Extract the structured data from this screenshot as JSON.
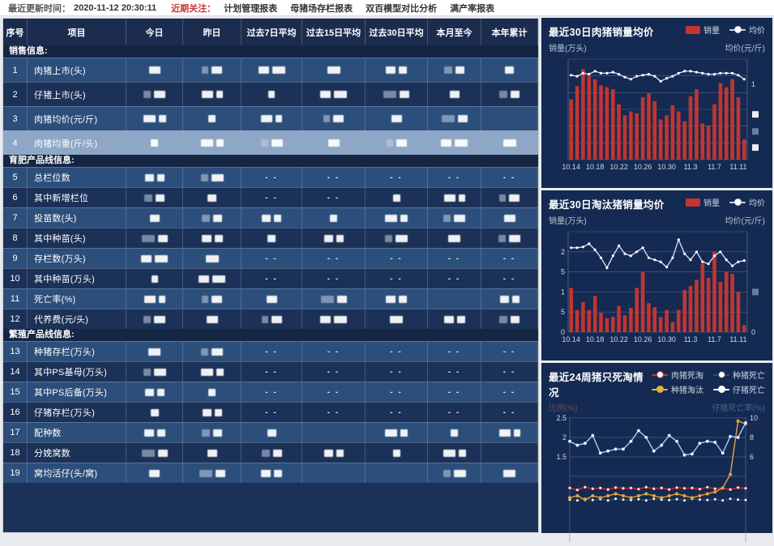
{
  "topbar": {
    "update_label": "最近更新时间：",
    "update_time": "2020-11-12 20:30:11",
    "focus_label": "近期关注：",
    "menu": [
      "计划管理报表",
      "母猪场存栏报表",
      "双百模型对比分析",
      "满产率报表"
    ]
  },
  "table": {
    "headers": [
      "序号",
      "项目",
      "今日",
      "昨日",
      "过去7日平均",
      "过去15日平均",
      "过去30日平均",
      "本月至今",
      "本年累计"
    ],
    "empty_value": "- -",
    "sections": [
      {
        "title": "销售信息:",
        "rows": [
          {
            "no": "1",
            "name": "肉猪上市(头)",
            "cells": [
              "b",
              "b",
              "b",
              "b",
              "b",
              "b",
              "b"
            ],
            "highlight": false
          },
          {
            "no": "2",
            "name": "仔猪上市(头)",
            "cells": [
              "b",
              "b",
              "b",
              "b",
              "b",
              "b",
              "b"
            ],
            "highlight": false
          },
          {
            "no": "3",
            "name": "肉猪均价(元/斤)",
            "cells": [
              "b",
              "b",
              "b",
              "b",
              "b",
              "b",
              ""
            ],
            "highlight": false
          },
          {
            "no": "4",
            "name": "肉猪均重(斤/头)",
            "cells": [
              "b",
              "b",
              "b",
              "b",
              "b",
              "b",
              "b"
            ],
            "highlight": true
          }
        ]
      },
      {
        "title": "育肥产品线信息:",
        "rows": [
          {
            "no": "5",
            "name": "总栏位数",
            "cells": [
              "b",
              "b",
              "-",
              "-",
              "-",
              "-",
              "-"
            ],
            "highlight": false
          },
          {
            "no": "6",
            "name": "其中新增栏位",
            "cells": [
              "b",
              "b",
              "-",
              "-",
              "b",
              "b",
              "b"
            ],
            "highlight": false
          },
          {
            "no": "7",
            "name": "投苗数(头)",
            "cells": [
              "b",
              "b",
              "b",
              "b",
              "b",
              "b",
              "b"
            ],
            "highlight": false
          },
          {
            "no": "8",
            "name": "其中种苗(头)",
            "cells": [
              "b",
              "b",
              "b",
              "b",
              "b",
              "b",
              "b"
            ],
            "highlight": false
          },
          {
            "no": "9",
            "name": "存栏数(万头)",
            "cells": [
              "b",
              "b",
              "-",
              "-",
              "-",
              "-",
              "-"
            ],
            "highlight": false
          },
          {
            "no": "10",
            "name": "其中种苗(万头)",
            "cells": [
              "b",
              "b",
              "-",
              "-",
              "-",
              "-",
              "-"
            ],
            "highlight": false
          },
          {
            "no": "11",
            "name": "死亡率(%)",
            "cells": [
              "b",
              "b",
              "b",
              "b",
              "b",
              "",
              "b"
            ],
            "highlight": false
          },
          {
            "no": "12",
            "name": "代养费(元/头)",
            "cells": [
              "b",
              "b",
              "b",
              "b",
              "b",
              "b",
              "b"
            ],
            "highlight": false
          }
        ]
      },
      {
        "title": "繁殖产品线信息:",
        "rows": [
          {
            "no": "13",
            "name": "种猪存栏(万头)",
            "cells": [
              "b",
              "b",
              "-",
              "-",
              "-",
              "-",
              "-"
            ],
            "highlight": false
          },
          {
            "no": "14",
            "name": "其中PS基母(万头)",
            "cells": [
              "b",
              "b",
              "-",
              "-",
              "-",
              "-",
              "-"
            ],
            "highlight": false
          },
          {
            "no": "15",
            "name": "其中PS后备(万头)",
            "cells": [
              "b",
              "b",
              "-",
              "-",
              "-",
              "-",
              "-"
            ],
            "highlight": false
          },
          {
            "no": "16",
            "name": "仔猪存栏(万头)",
            "cells": [
              "b",
              "b",
              "-",
              "-",
              "-",
              "-",
              "-"
            ],
            "highlight": false
          },
          {
            "no": "17",
            "name": "配种数",
            "cells": [
              "b",
              "b",
              "b",
              "",
              "b",
              "b",
              "b"
            ],
            "highlight": false
          },
          {
            "no": "18",
            "name": "分娩窝数",
            "cells": [
              "b",
              "b",
              "b",
              "b",
              "b",
              "b",
              ""
            ],
            "highlight": false
          },
          {
            "no": "19",
            "name": "窝均活仔(头/窝)",
            "cells": [
              "b",
              "b",
              "b",
              "",
              "",
              "b",
              "b"
            ],
            "highlight": false
          }
        ]
      }
    ]
  },
  "chart_data": [
    {
      "type": "bar",
      "title": "最近30日肉猪销量均价",
      "legend": [
        {
          "name": "销量",
          "marker": "bar",
          "color": "#c23531"
        },
        {
          "name": "均价",
          "marker": "line",
          "color": "#c9d4e4",
          "dot": "#ffffff"
        }
      ],
      "y_left_label": "销量(万头)",
      "y_right_label": "均价(元/斤)",
      "x_ticks": [
        "10.14",
        "10.18",
        "10.22",
        "10.26",
        "10.30",
        "11.3",
        "11.7",
        "11.11"
      ],
      "x_tick_idx": [
        0,
        4,
        8,
        12,
        16,
        20,
        24,
        28
      ],
      "ylim": [
        0,
        1
      ],
      "note": "y-axis tick labels redacted in source; bar heights normalized 0-1",
      "values": [
        0.6,
        0.73,
        0.9,
        0.83,
        0.8,
        0.74,
        0.72,
        0.7,
        0.55,
        0.44,
        0.48,
        0.46,
        0.62,
        0.66,
        0.58,
        0.4,
        0.44,
        0.54,
        0.48,
        0.38,
        0.63,
        0.7,
        0.36,
        0.34,
        0.55,
        0.76,
        0.72,
        0.8,
        0.62,
        0.2
      ],
      "series": [
        {
          "name": "均价",
          "values": [
            0.84,
            0.83,
            0.86,
            0.85,
            0.88,
            0.86,
            0.86,
            0.87,
            0.85,
            0.82,
            0.8,
            0.83,
            0.84,
            0.85,
            0.83,
            0.78,
            0.81,
            0.83,
            0.86,
            0.88,
            0.88,
            0.87,
            0.86,
            0.85,
            0.85,
            0.86,
            0.86,
            0.86,
            0.84,
            0.8
          ]
        }
      ],
      "right_tick_visible": "1"
    },
    {
      "type": "bar",
      "title": "最近30日淘汰猪销量均价",
      "legend": [
        {
          "name": "销量",
          "marker": "bar",
          "color": "#c23531"
        },
        {
          "name": "均价",
          "marker": "line",
          "color": "#c9d4e4",
          "dot": "#ffffff"
        }
      ],
      "y_left_label": "销量(万头)",
      "y_right_label": "均价(元/斤)",
      "x_ticks": [
        "10.14",
        "10.18",
        "10.22",
        "10.26",
        "10.30",
        "11.3",
        "11.7",
        "11.11"
      ],
      "x_tick_idx": [
        0,
        4,
        8,
        12,
        16,
        20,
        24,
        28
      ],
      "ylim": [
        0,
        2.5
      ],
      "y_left_ticks": [
        "2",
        "5",
        "1",
        "5",
        "0"
      ],
      "y_right_tick_bottom": "0",
      "values": [
        1.1,
        0.55,
        0.75,
        0.55,
        0.9,
        0.48,
        0.35,
        0.38,
        0.65,
        0.42,
        0.6,
        1.1,
        1.5,
        0.72,
        0.62,
        0.38,
        0.55,
        0.25,
        0.55,
        1.05,
        1.15,
        1.3,
        1.7,
        1.35,
        2.0,
        1.25,
        1.5,
        1.45,
        1.0,
        0.18
      ],
      "series": [
        {
          "name": "均价",
          "values": [
            2.1,
            2.1,
            2.12,
            2.2,
            2.05,
            1.85,
            1.6,
            1.9,
            2.15,
            1.95,
            1.9,
            2.0,
            2.1,
            1.85,
            1.8,
            1.75,
            1.62,
            1.85,
            2.3,
            1.95,
            1.8,
            2.0,
            1.75,
            1.7,
            1.9,
            2.0,
            1.8,
            1.65,
            1.75,
            1.78
          ]
        }
      ]
    },
    {
      "type": "line",
      "title": "最近24周猪只死淘情况",
      "legend": [
        {
          "name": "肉猪死淘",
          "marker": "line",
          "color": "#c23531",
          "dot": "#ffffff"
        },
        {
          "name": "种猪死亡",
          "marker": "line",
          "color": "#3a4a66",
          "dot": "#ffffff"
        },
        {
          "name": "种猪淘汰",
          "marker": "line",
          "color": "#e8b339",
          "dot": "#e8b339"
        },
        {
          "name": "仔猪死亡",
          "marker": "line",
          "color": "#ffffff",
          "dot": "#ffffff"
        }
      ],
      "y_left_label": "比例(%)",
      "y_right_label": "仔猪死亡率(%)",
      "y_left_ticks": [
        "2.5",
        "2",
        "1.5"
      ],
      "y_right_ticks": [
        "10",
        "8",
        "6"
      ],
      "ylim_left": [
        0,
        2.5
      ],
      "ylim_right": [
        0,
        10
      ],
      "x_ticks": [],
      "series": [
        {
          "name": "仔猪死亡",
          "axis": "right",
          "color": "#a6cdf0",
          "dot": "#ffffff",
          "values": [
            7.6,
            7.2,
            7.4,
            8.2,
            6.4,
            6.6,
            6.8,
            6.8,
            7.6,
            8.7,
            8.0,
            6.6,
            7.2,
            8.2,
            7.6,
            6.2,
            6.3,
            7.4,
            7.6,
            7.5,
            6.4,
            8.1,
            8.0,
            9.5
          ]
        },
        {
          "name": "种猪淘汰",
          "axis": "left",
          "color": "#e8a33d",
          "dot": "#e8a33d",
          "values": [
            0.45,
            0.5,
            0.4,
            0.5,
            0.45,
            0.5,
            0.55,
            0.5,
            0.45,
            0.5,
            0.55,
            0.5,
            0.45,
            0.5,
            0.55,
            0.5,
            0.45,
            0.5,
            0.55,
            0.6,
            0.7,
            1.05,
            2.42,
            2.35
          ]
        },
        {
          "name": "肉猪死淘",
          "axis": "left",
          "color": "#c23531",
          "dot": "#ffffff",
          "values": [
            0.7,
            0.65,
            0.72,
            0.68,
            0.7,
            0.66,
            0.71,
            0.69,
            0.7,
            0.67,
            0.72,
            0.68,
            0.7,
            0.66,
            0.71,
            0.69,
            0.7,
            0.67,
            0.72,
            0.68,
            0.7,
            0.66,
            0.71,
            0.69
          ]
        },
        {
          "name": "种猪死亡",
          "axis": "left",
          "color": "#3a4a66",
          "dot": "#ffffff",
          "values": [
            0.4,
            0.38,
            0.42,
            0.39,
            0.41,
            0.38,
            0.42,
            0.4,
            0.39,
            0.41,
            0.38,
            0.42,
            0.4,
            0.39,
            0.41,
            0.38,
            0.42,
            0.4,
            0.39,
            0.41,
            0.38,
            0.42,
            0.4,
            0.39
          ]
        }
      ]
    }
  ],
  "colors": {
    "accent_red": "#c23531",
    "panel_bg": "#142a52",
    "row_light": "#2c4e7a",
    "row_dark": "#1b3157",
    "row_highlight": "#8ea7c6",
    "header_bg": "#1c2c4f",
    "grid_line": "#71809c"
  }
}
